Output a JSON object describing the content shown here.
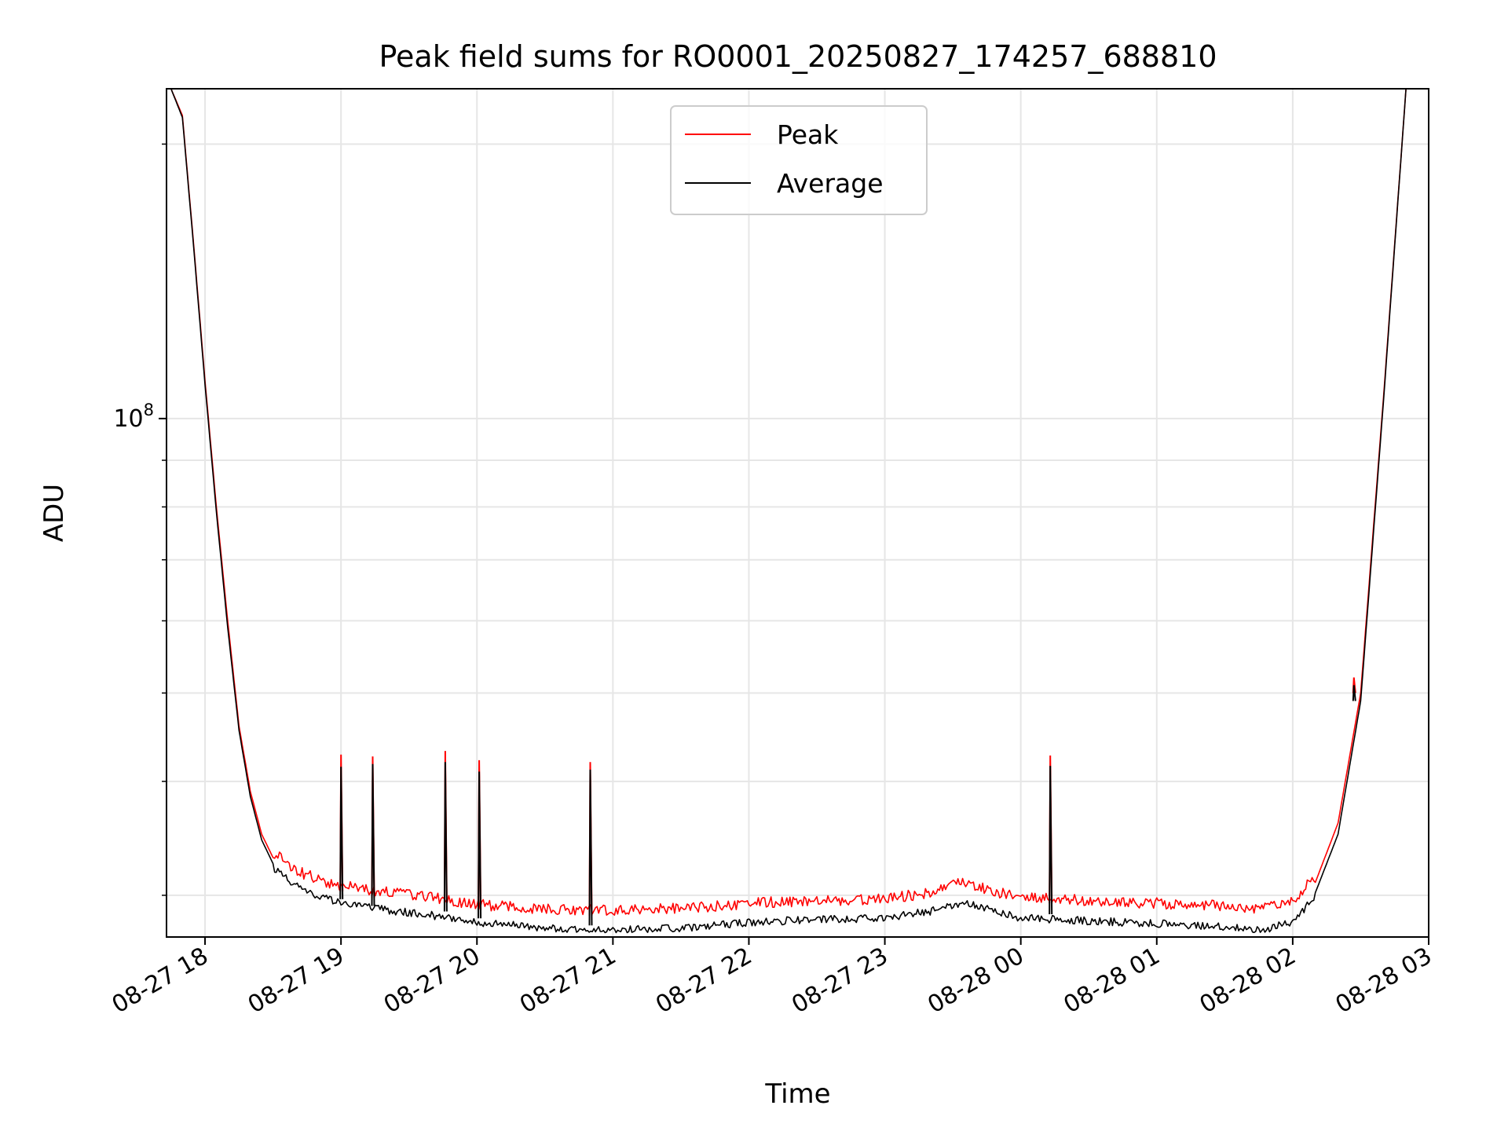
{
  "chart_data": {
    "type": "line",
    "title": "Peak field sums for RO0001_20250827_174257_688810",
    "xlabel": "Time",
    "ylabel": "ADU",
    "y_scale": "log",
    "ylim": [
      27000000,
      230000000
    ],
    "xlim": [
      "2025-08-27 17:43",
      "2025-08-28 03:00"
    ],
    "grid": true,
    "legend_position": "top-center",
    "x_ticks": [
      {
        "at": "2025-08-27 18:00",
        "label": "08-27 18"
      },
      {
        "at": "2025-08-27 19:00",
        "label": "08-27 19"
      },
      {
        "at": "2025-08-27 20:00",
        "label": "08-27 20"
      },
      {
        "at": "2025-08-27 21:00",
        "label": "08-27 21"
      },
      {
        "at": "2025-08-27 22:00",
        "label": "08-27 22"
      },
      {
        "at": "2025-08-27 23:00",
        "label": "08-27 23"
      },
      {
        "at": "2025-08-28 00:00",
        "label": "08-28 00"
      },
      {
        "at": "2025-08-28 01:00",
        "label": "08-28 01"
      },
      {
        "at": "2025-08-28 02:00",
        "label": "08-28 02"
      },
      {
        "at": "2025-08-28 03:00",
        "label": "08-28 03"
      }
    ],
    "y_major_ticks": [
      {
        "value": 100000000,
        "label_base": "10",
        "label_exp": "8"
      }
    ],
    "y_minor_ticks": [
      30000000,
      40000000,
      50000000,
      60000000,
      70000000,
      80000000,
      90000000,
      200000000
    ],
    "series": [
      {
        "name": "Peak",
        "color": "#ff0000",
        "x": [
          "2025-08-27 17:45",
          "2025-08-27 17:50",
          "2025-08-27 17:55",
          "2025-08-27 18:00",
          "2025-08-27 18:05",
          "2025-08-27 18:10",
          "2025-08-27 18:15",
          "2025-08-27 18:20",
          "2025-08-27 18:25",
          "2025-08-27 18:30",
          "2025-08-27 18:40",
          "2025-08-27 18:50",
          "2025-08-27 19:00",
          "2025-08-27 19:20",
          "2025-08-27 19:40",
          "2025-08-27 20:00",
          "2025-08-27 20:30",
          "2025-08-27 21:00",
          "2025-08-27 21:30",
          "2025-08-27 22:00",
          "2025-08-27 22:30",
          "2025-08-27 23:00",
          "2025-08-27 23:20",
          "2025-08-27 23:35",
          "2025-08-27 23:50",
          "2025-08-28 00:00",
          "2025-08-28 00:30",
          "2025-08-28 01:00",
          "2025-08-28 01:30",
          "2025-08-28 01:45",
          "2025-08-28 02:00",
          "2025-08-28 02:10",
          "2025-08-28 02:20",
          "2025-08-28 02:30",
          "2025-08-28 02:40",
          "2025-08-28 02:50"
        ],
        "values": [
          230000000,
          215000000,
          155000000,
          110000000,
          80000000,
          60000000,
          46000000,
          39000000,
          35000000,
          33000000,
          31500000,
          30800000,
          30300000,
          29800000,
          29400000,
          28900000,
          28600000,
          28500000,
          28600000,
          29000000,
          29200000,
          29300000,
          29800000,
          30600000,
          29800000,
          29400000,
          29200000,
          29000000,
          28800000,
          28600000,
          29200000,
          31000000,
          36000000,
          50000000,
          105000000,
          230000000
        ],
        "spikes": [
          {
            "x": "2025-08-27 19:00",
            "value": 42800000
          },
          {
            "x": "2025-08-27 19:14",
            "value": 42600000
          },
          {
            "x": "2025-08-27 19:46",
            "value": 43200000
          },
          {
            "x": "2025-08-27 20:01",
            "value": 42200000
          },
          {
            "x": "2025-08-27 20:50",
            "value": 42000000
          },
          {
            "x": "2025-08-28 00:13",
            "value": 42700000
          },
          {
            "x": "2025-08-28 02:27",
            "value": 52000000
          }
        ]
      },
      {
        "name": "Average",
        "color": "#000000",
        "x": [
          "2025-08-27 17:45",
          "2025-08-27 17:50",
          "2025-08-27 17:55",
          "2025-08-27 18:00",
          "2025-08-27 18:05",
          "2025-08-27 18:10",
          "2025-08-27 18:15",
          "2025-08-27 18:20",
          "2025-08-27 18:25",
          "2025-08-27 18:30",
          "2025-08-27 18:40",
          "2025-08-27 18:50",
          "2025-08-27 19:00",
          "2025-08-27 19:20",
          "2025-08-27 19:40",
          "2025-08-27 20:00",
          "2025-08-27 20:30",
          "2025-08-27 21:00",
          "2025-08-27 21:30",
          "2025-08-27 22:00",
          "2025-08-27 22:30",
          "2025-08-27 23:00",
          "2025-08-27 23:20",
          "2025-08-27 23:35",
          "2025-08-27 23:50",
          "2025-08-28 00:00",
          "2025-08-28 00:30",
          "2025-08-28 01:00",
          "2025-08-28 01:30",
          "2025-08-28 01:45",
          "2025-08-28 02:00",
          "2025-08-28 02:10",
          "2025-08-28 02:20",
          "2025-08-28 02:30",
          "2025-08-28 02:40",
          "2025-08-28 02:50"
        ],
        "values": [
          230000000,
          214000000,
          154000000,
          109000000,
          79000000,
          59000000,
          45500000,
          38500000,
          34500000,
          32500000,
          31000000,
          30200000,
          29700000,
          29200000,
          28800000,
          28300000,
          27900000,
          27800000,
          27900000,
          28300000,
          28500000,
          28600000,
          29100000,
          29800000,
          29000000,
          28600000,
          28400000,
          28200000,
          28000000,
          27700000,
          28300000,
          30200000,
          35000000,
          49000000,
          104000000,
          230000000
        ],
        "spikes": [
          {
            "x": "2025-08-27 19:00",
            "value": 41500000
          },
          {
            "x": "2025-08-27 19:14",
            "value": 41800000
          },
          {
            "x": "2025-08-27 19:46",
            "value": 42000000
          },
          {
            "x": "2025-08-27 20:01",
            "value": 41000000
          },
          {
            "x": "2025-08-27 20:50",
            "value": 41200000
          },
          {
            "x": "2025-08-28 00:13",
            "value": 41600000
          },
          {
            "x": "2025-08-28 02:27",
            "value": 51000000
          }
        ]
      }
    ]
  }
}
